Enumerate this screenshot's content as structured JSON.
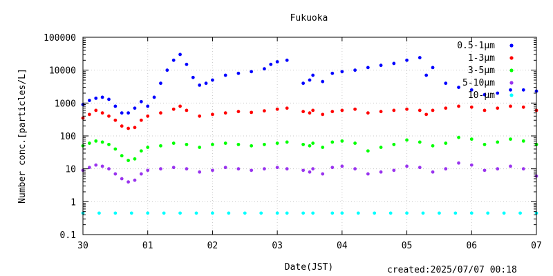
{
  "chart_data": {
    "type": "scatter",
    "title": "Fukuoka",
    "xlabel": "Date(JST)",
    "ylabel": "Number conc.[particles/L]",
    "yscale": "log",
    "ylim": [
      0.1,
      100000
    ],
    "xlim": [
      0,
      7
    ],
    "x_ticks": [
      {
        "x": 0,
        "label": "30"
      },
      {
        "x": 1,
        "label": "01"
      },
      {
        "x": 2,
        "label": "02"
      },
      {
        "x": 3,
        "label": "03"
      },
      {
        "x": 4,
        "label": "04"
      },
      {
        "x": 5,
        "label": "05"
      },
      {
        "x": 6,
        "label": "06"
      },
      {
        "x": 7,
        "label": "07"
      }
    ],
    "y_ticks": [
      {
        "y": 0.1,
        "label": "0.1"
      },
      {
        "y": 1,
        "label": "1"
      },
      {
        "y": 10,
        "label": "10"
      },
      {
        "y": 100,
        "label": "100"
      },
      {
        "y": 1000,
        "label": "1000"
      },
      {
        "y": 10000,
        "label": "10000"
      },
      {
        "y": 100000,
        "label": "100000"
      }
    ],
    "legend_position": "top-right",
    "series": [
      {
        "name": "0.5-1μm",
        "color": "#0000ff",
        "x": [
          0,
          0.1,
          0.2,
          0.3,
          0.4,
          0.5,
          0.6,
          0.7,
          0.8,
          0.9,
          1.0,
          1.1,
          1.2,
          1.3,
          1.4,
          1.5,
          1.6,
          1.7,
          1.8,
          1.9,
          2.0,
          2.2,
          2.4,
          2.6,
          2.8,
          2.9,
          3.0,
          3.15,
          3.4,
          3.5,
          3.55,
          3.7,
          3.85,
          4.0,
          4.2,
          4.4,
          4.6,
          4.8,
          5.0,
          5.2,
          5.3,
          5.4,
          5.6,
          5.8,
          6.0,
          6.2,
          6.4,
          6.6,
          6.8,
          7.0
        ],
        "y": [
          900,
          1200,
          1400,
          1500,
          1300,
          800,
          500,
          500,
          700,
          1100,
          800,
          1500,
          4000,
          10000,
          20000,
          30000,
          15000,
          6000,
          3500,
          4000,
          5000,
          7000,
          8000,
          9000,
          11000,
          15000,
          18000,
          20000,
          4000,
          5000,
          7000,
          4500,
          8000,
          9000,
          10000,
          12000,
          14000,
          16000,
          20000,
          24000,
          7000,
          12000,
          4000,
          3000,
          2500,
          1800,
          2000,
          2500,
          2500,
          2300
        ]
      },
      {
        "name": "1-3μm",
        "color": "#ff0000",
        "x": [
          0,
          0.1,
          0.2,
          0.3,
          0.4,
          0.5,
          0.6,
          0.7,
          0.8,
          0.9,
          1.0,
          1.2,
          1.4,
          1.5,
          1.6,
          1.8,
          2.0,
          2.2,
          2.4,
          2.6,
          2.8,
          3.0,
          3.15,
          3.4,
          3.5,
          3.55,
          3.7,
          3.85,
          4.0,
          4.2,
          4.4,
          4.6,
          4.8,
          5.0,
          5.2,
          5.3,
          5.4,
          5.6,
          5.8,
          6.0,
          6.2,
          6.4,
          6.6,
          6.8,
          7.0
        ],
        "y": [
          350,
          450,
          600,
          500,
          400,
          300,
          200,
          170,
          180,
          300,
          400,
          500,
          650,
          800,
          600,
          400,
          450,
          500,
          550,
          520,
          580,
          650,
          700,
          550,
          500,
          600,
          450,
          550,
          600,
          650,
          500,
          550,
          600,
          650,
          600,
          450,
          600,
          700,
          800,
          750,
          600,
          700,
          800,
          750,
          600
        ]
      },
      {
        "name": "3-5μm",
        "color": "#00ff00",
        "x": [
          0,
          0.1,
          0.2,
          0.3,
          0.4,
          0.5,
          0.6,
          0.7,
          0.8,
          0.9,
          1.0,
          1.2,
          1.4,
          1.6,
          1.8,
          2.0,
          2.2,
          2.4,
          2.6,
          2.8,
          3.0,
          3.15,
          3.4,
          3.5,
          3.55,
          3.7,
          3.85,
          4.0,
          4.2,
          4.4,
          4.6,
          4.8,
          5.0,
          5.2,
          5.4,
          5.6,
          5.8,
          6.0,
          6.2,
          6.4,
          6.6,
          6.8,
          7.0
        ],
        "y": [
          50,
          60,
          70,
          65,
          55,
          40,
          25,
          18,
          20,
          35,
          45,
          50,
          60,
          55,
          45,
          55,
          60,
          55,
          50,
          55,
          60,
          65,
          55,
          50,
          60,
          45,
          65,
          70,
          60,
          35,
          45,
          55,
          75,
          65,
          50,
          60,
          90,
          80,
          55,
          65,
          80,
          70,
          55
        ]
      },
      {
        "name": "5-10μm",
        "color": "#9933ee",
        "x": [
          0,
          0.1,
          0.2,
          0.3,
          0.4,
          0.5,
          0.6,
          0.7,
          0.8,
          0.9,
          1.0,
          1.2,
          1.4,
          1.6,
          1.8,
          2.0,
          2.2,
          2.4,
          2.6,
          2.8,
          3.0,
          3.15,
          3.4,
          3.5,
          3.55,
          3.7,
          3.85,
          4.0,
          4.2,
          4.4,
          4.6,
          4.8,
          5.0,
          5.2,
          5.4,
          5.6,
          5.8,
          6.0,
          6.2,
          6.4,
          6.6,
          6.8,
          7.0
        ],
        "y": [
          9,
          11,
          13,
          12,
          10,
          7,
          5,
          4,
          4.5,
          7,
          9,
          10,
          11,
          10,
          8,
          9,
          11,
          10,
          9,
          10,
          11,
          10,
          9,
          8,
          10,
          7,
          11,
          12,
          10,
          7,
          8,
          9,
          12,
          11,
          8,
          10,
          15,
          13,
          9,
          10,
          12,
          10,
          6
        ]
      },
      {
        "name": "10-μm",
        "color": "#00ffff",
        "x": [
          0,
          0.25,
          0.5,
          0.75,
          1.0,
          1.25,
          1.5,
          1.75,
          2.0,
          2.25,
          2.5,
          2.75,
          3.0,
          3.15,
          3.4,
          3.55,
          3.85,
          4.0,
          4.25,
          4.5,
          4.75,
          5.0,
          5.25,
          5.5,
          5.75,
          6.0,
          6.25,
          6.5,
          6.75,
          7.0
        ],
        "y": [
          0.45,
          0.45,
          0.45,
          0.45,
          0.45,
          0.45,
          0.45,
          0.45,
          0.45,
          0.45,
          0.45,
          0.45,
          0.45,
          0.45,
          0.45,
          0.45,
          0.45,
          0.45,
          0.45,
          0.45,
          0.45,
          0.45,
          0.45,
          0.45,
          0.45,
          0.45,
          0.45,
          0.45,
          0.45,
          0.45
        ]
      }
    ]
  },
  "footer": {
    "created": "created:2025/07/07 00:18"
  }
}
